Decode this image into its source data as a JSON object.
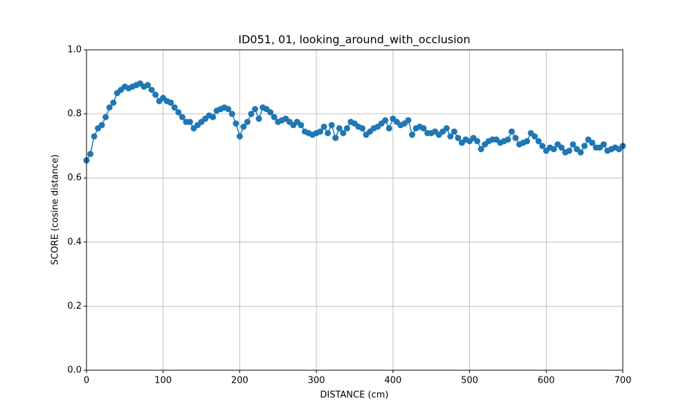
{
  "chart_data": {
    "type": "line",
    "title": "ID051, 01, looking_around_with_occlusion",
    "x_label": "DISTANCE (cm)",
    "y_label": "SCORE (cosine distance)",
    "x": [
      0,
      5,
      10,
      15,
      20,
      25,
      30,
      35,
      40,
      45,
      50,
      55,
      60,
      65,
      70,
      75,
      80,
      85,
      90,
      95,
      100,
      105,
      110,
      115,
      120,
      125,
      130,
      135,
      140,
      145,
      150,
      155,
      160,
      165,
      170,
      175,
      180,
      185,
      190,
      195,
      200,
      205,
      210,
      215,
      220,
      225,
      230,
      235,
      240,
      245,
      250,
      255,
      260,
      265,
      270,
      275,
      280,
      285,
      290,
      295,
      300,
      305,
      310,
      315,
      320,
      325,
      330,
      335,
      340,
      345,
      350,
      355,
      360,
      365,
      370,
      375,
      380,
      385,
      390,
      395,
      400,
      405,
      410,
      415,
      420,
      425,
      430,
      435,
      440,
      445,
      450,
      455,
      460,
      465,
      470,
      475,
      480,
      485,
      490,
      495,
      500,
      505,
      510,
      515,
      520,
      525,
      530,
      535,
      540,
      545,
      550,
      555,
      560,
      565,
      570,
      575,
      580,
      585,
      590,
      595,
      600,
      605,
      610,
      615,
      620,
      625,
      630,
      635,
      640,
      645,
      650,
      655,
      660,
      665,
      670,
      675,
      680,
      685,
      690,
      695,
      700
    ],
    "series": [
      {
        "color": "#1f77b4",
        "values": [
          0.655,
          0.675,
          0.73,
          0.755,
          0.765,
          0.79,
          0.82,
          0.835,
          0.865,
          0.875,
          0.885,
          0.88,
          0.885,
          0.89,
          0.895,
          0.885,
          0.89,
          0.875,
          0.86,
          0.84,
          0.85,
          0.84,
          0.835,
          0.82,
          0.805,
          0.79,
          0.775,
          0.775,
          0.755,
          0.765,
          0.775,
          0.785,
          0.795,
          0.79,
          0.81,
          0.815,
          0.82,
          0.815,
          0.8,
          0.77,
          0.73,
          0.76,
          0.775,
          0.8,
          0.815,
          0.785,
          0.82,
          0.815,
          0.805,
          0.79,
          0.775,
          0.78,
          0.785,
          0.775,
          0.765,
          0.775,
          0.765,
          0.745,
          0.74,
          0.735,
          0.74,
          0.745,
          0.76,
          0.74,
          0.765,
          0.725,
          0.755,
          0.74,
          0.755,
          0.775,
          0.77,
          0.76,
          0.755,
          0.735,
          0.745,
          0.755,
          0.76,
          0.77,
          0.78,
          0.755,
          0.785,
          0.775,
          0.765,
          0.77,
          0.78,
          0.735,
          0.755,
          0.76,
          0.755,
          0.74,
          0.74,
          0.745,
          0.735,
          0.745,
          0.755,
          0.73,
          0.745,
          0.725,
          0.71,
          0.72,
          0.715,
          0.725,
          0.715,
          0.69,
          0.705,
          0.715,
          0.72,
          0.72,
          0.71,
          0.715,
          0.72,
          0.745,
          0.725,
          0.705,
          0.71,
          0.715,
          0.74,
          0.73,
          0.715,
          0.7,
          0.685,
          0.695,
          0.69,
          0.705,
          0.695,
          0.68,
          0.685,
          0.705,
          0.69,
          0.68,
          0.7,
          0.72,
          0.71,
          0.695,
          0.695,
          0.705,
          0.685,
          0.69,
          0.695,
          0.69,
          0.7
        ]
      }
    ],
    "xlim": [
      0,
      700
    ],
    "xticks": [
      0,
      100,
      200,
      300,
      400,
      500,
      600,
      700
    ],
    "ylim": [
      0,
      1
    ],
    "yticks": [
      {
        "value": 0,
        "label": "0.0"
      },
      0.2,
      0.4,
      0.6,
      0.8,
      {
        "value": 1,
        "label": "1.0"
      }
    ],
    "grid": true
  }
}
